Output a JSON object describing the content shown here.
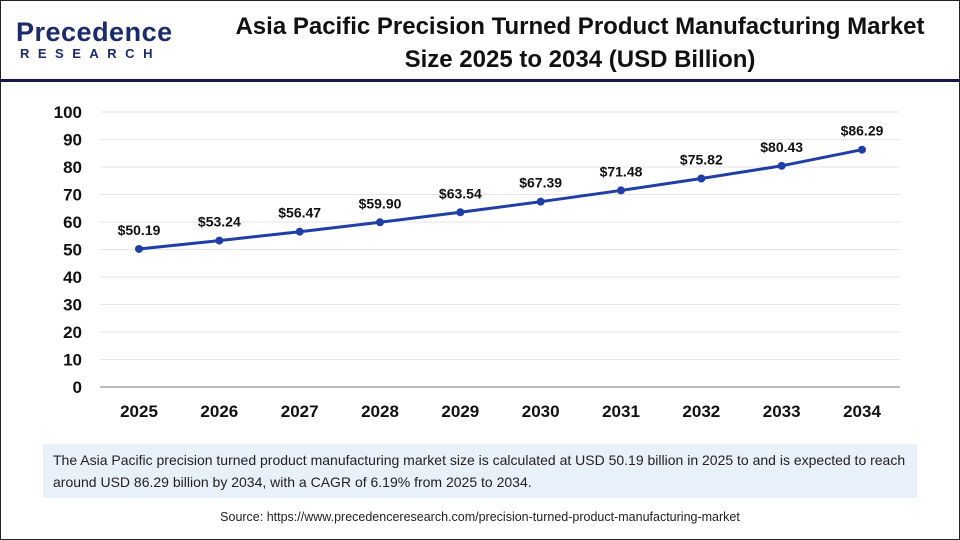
{
  "logo": {
    "line1": "Precedence",
    "line2": "RESEARCH"
  },
  "title": "Asia Pacific Precision Turned Product Manufacturing Market Size 2025 to 2034 (USD Billion)",
  "colors": {
    "line": "#1f3fa6",
    "brand": "#1c2a6e",
    "summary_bg": "#e8f0fa"
  },
  "chart_data": {
    "type": "line",
    "title": "Asia Pacific Precision Turned Product Manufacturing Market Size 2025 to 2034 (USD Billion)",
    "categories": [
      "2025",
      "2026",
      "2027",
      "2028",
      "2029",
      "2030",
      "2031",
      "2032",
      "2033",
      "2034"
    ],
    "values": [
      50.19,
      53.24,
      56.47,
      59.9,
      63.54,
      67.39,
      71.48,
      75.82,
      80.43,
      86.29
    ],
    "data_labels": [
      "$50.19",
      "$53.24",
      "$56.47",
      "$59.90",
      "$63.54",
      "$67.39",
      "$71.48",
      "$75.82",
      "$80.43",
      "$86.29"
    ],
    "ylim": [
      0,
      100
    ],
    "yticks": [
      "0",
      "10",
      "20",
      "30",
      "40",
      "50",
      "60",
      "70",
      "80",
      "90",
      "100"
    ],
    "grid": true,
    "legend": "none"
  },
  "summary": "The Asia Pacific precision turned product manufacturing market size is calculated at USD 50.19 billion in 2025 to and is expected to reach around USD 86.29 billion by 2034, with a CAGR of 6.19% from 2025 to 2034.",
  "source": "Source: https://www.precedenceresearch.com/precision-turned-product-manufacturing-market"
}
